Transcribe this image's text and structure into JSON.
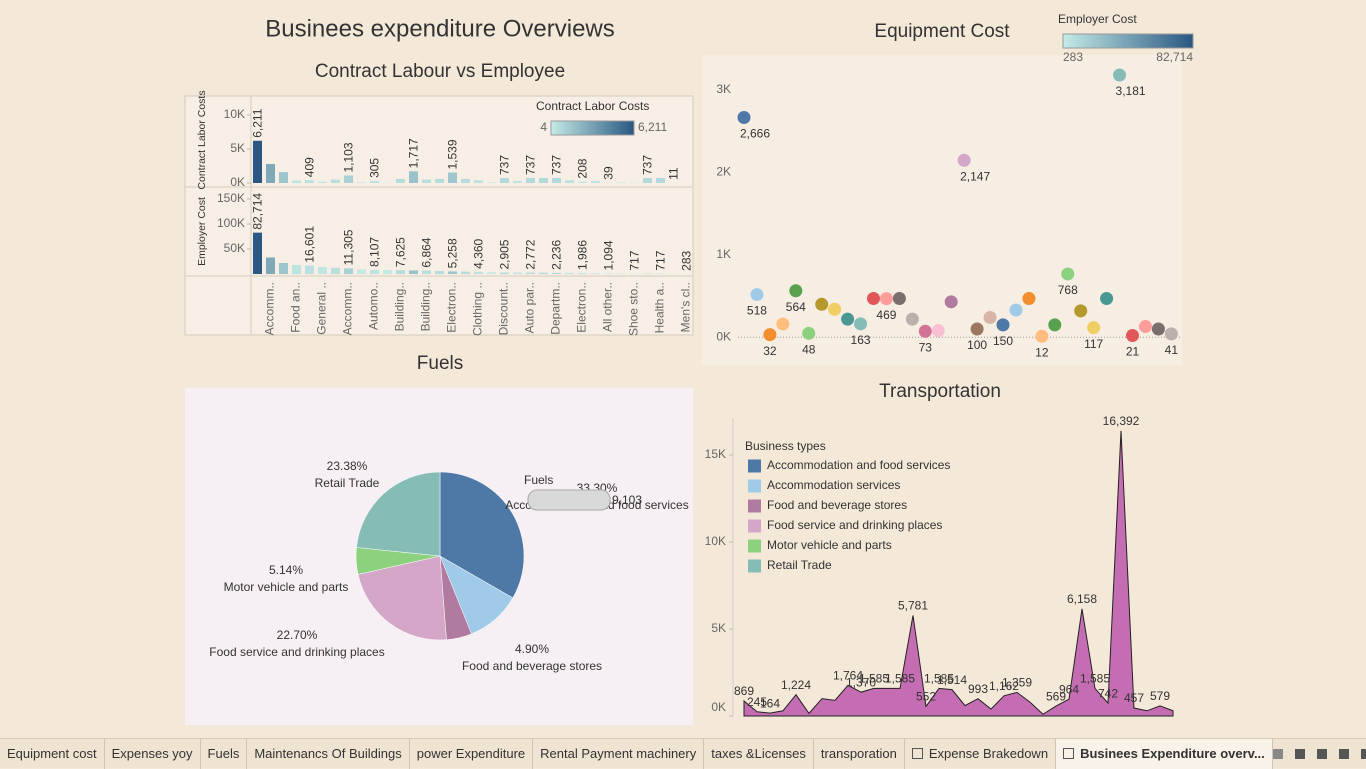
{
  "title": "Businees expenditure Overviews",
  "tabs": [
    "Equipment cost",
    "Expenses yoy",
    "Fuels",
    "Maintenancs Of Buildings",
    "power Expenditure",
    "Rental Payment machinery",
    "taxes &Licenses",
    "transporation",
    "Expense Brakedown",
    "Businees Expenditure overv..."
  ],
  "chart_data": [
    {
      "type": "bar",
      "title": "Contract Labour vs Employee",
      "categories": [
        null,
        "Accomm..",
        null,
        "Food an..",
        null,
        "General ..",
        null,
        "Accomm..",
        null,
        "Automo..",
        null,
        "Building..",
        null,
        "Building..",
        null,
        "Electron..",
        null,
        "Clothing ..",
        null,
        "Discount..",
        null,
        "Auto par..",
        null,
        "Departm..",
        null,
        "Electron..",
        null,
        "All other..",
        null,
        "Shoe sto..",
        null,
        "Health a..",
        null,
        "Men's cl.."
      ],
      "color_legend": {
        "title": "Contract Labor Costs",
        "range": [
          4,
          {
            "value": 6211,
            "label": "6,211"
          }
        ],
        "colors": [
          "#c4ebe6",
          "#2a5783"
        ]
      },
      "series": [
        {
          "name": "Contract Labor Costs",
          "values": [
            6211,
            2800,
            1600,
            350,
            409,
            200,
            500,
            1103,
            100,
            305,
            50,
            600,
            1717,
            500,
            600,
            1539,
            600,
            400,
            100,
            737,
            300,
            737,
            737,
            737,
            400,
            208,
            300,
            39,
            100,
            50,
            737,
            737,
            11,
            4
          ],
          "value_labels": [
            "6,211",
            null,
            null,
            null,
            "409",
            null,
            null,
            "1,103",
            null,
            "305",
            null,
            null,
            "1,717",
            null,
            null,
            "1,539",
            null,
            null,
            null,
            "737",
            null,
            "737",
            null,
            "737",
            null,
            "208",
            null,
            "39",
            null,
            null,
            "737",
            null,
            "11",
            null
          ],
          "ylim": [
            0,
            12650
          ],
          "yticks": [
            {
              "value": 0,
              "label": "0K"
            },
            {
              "value": 5000,
              "label": "5K"
            },
            {
              "value": 10000,
              "label": "10K"
            }
          ]
        },
        {
          "name": "Employer Cost",
          "values": [
            82714,
            33000,
            22000,
            18000,
            16601,
            14000,
            12500,
            11305,
            9000,
            8107,
            7800,
            7625,
            7200,
            6864,
            6000,
            5258,
            4800,
            4360,
            3500,
            2905,
            2800,
            2772,
            2500,
            2236,
            2100,
            1986,
            1500,
            1094,
            900,
            717,
            717,
            717,
            500,
            283
          ],
          "value_labels": [
            "82,714",
            null,
            null,
            null,
            "16,601",
            null,
            null,
            "11,305",
            null,
            "8,107",
            null,
            "7,625",
            null,
            "6,864",
            null,
            "5,258",
            null,
            "4,360",
            null,
            "2,905",
            null,
            "2,772",
            null,
            "2,236",
            null,
            "1,986",
            null,
            "1,094",
            null,
            "717",
            null,
            "717",
            null,
            "283"
          ],
          "ylim": [
            0,
            170000
          ],
          "yticks": [
            {
              "value": 50000,
              "label": "50K"
            },
            {
              "value": 100000,
              "label": "100K"
            },
            {
              "value": 150000,
              "label": "150K"
            }
          ]
        }
      ]
    },
    {
      "type": "scatter",
      "title": "Equipment  Cost",
      "color_legend": {
        "title": "Employer Cost",
        "range": [
          283,
          {
            "value": 82714,
            "label": "82,714"
          }
        ],
        "colors": [
          "#c4ebe6",
          "#2a5783"
        ]
      },
      "palette": [
        "#4e79a7",
        "#a0cbe8",
        "#f28e2b",
        "#ffbe7d",
        "#59a14f",
        "#8cd17d",
        "#b6992d",
        "#f1ce63",
        "#499894",
        "#86bcb6",
        "#e15759",
        "#ff9d9a",
        "#79706e",
        "#bab0ac",
        "#d37295",
        "#fabfd2",
        "#b07aa1",
        "#d4a6c8",
        "#9d7660",
        "#d7b5a6"
      ],
      "values": [
        2666,
        518,
        32,
        160,
        564,
        48,
        400,
        340,
        220,
        163,
        470,
        469,
        470,
        220,
        73,
        80,
        430,
        2147,
        100,
        240,
        150,
        330,
        470,
        12,
        150,
        768,
        320,
        117,
        470,
        3181,
        21,
        130,
        100,
        41
      ],
      "value_labels": [
        "2,666",
        "518",
        "32",
        null,
        "564",
        "48",
        null,
        null,
        null,
        "163",
        null,
        "469",
        null,
        null,
        "73",
        null,
        null,
        "2,147",
        "100",
        null,
        "150",
        null,
        null,
        "12",
        null,
        "768",
        null,
        "117",
        null,
        "3,181",
        "21",
        null,
        null,
        "41"
      ],
      "ylim": [
        -300,
        3400
      ],
      "yticks": [
        {
          "value": 0,
          "label": "0K"
        },
        {
          "value": 1000,
          "label": "1K"
        },
        {
          "value": 2000,
          "label": "2K"
        },
        {
          "value": 3000,
          "label": "3K"
        }
      ]
    },
    {
      "type": "pie",
      "title": "Fuels",
      "categories": [
        "Accommodation and food services",
        "Accommodation services",
        "Food and beverage stores",
        "Food service and drinking places",
        "Motor vehicle and parts",
        "Retail Trade"
      ],
      "values": [
        33.3,
        10.58,
        4.9,
        22.7,
        5.14,
        23.38
      ],
      "value_labels": [
        "33.30%",
        null,
        "4.90%",
        "22.70%",
        "5.14%",
        "23.38%"
      ],
      "colors": [
        "#4e79a7",
        "#a0cbe8",
        "#b07aa1",
        "#d4a6c8",
        "#8cd17d",
        "#86bcb6"
      ],
      "annotations": [
        "Fuels",
        "9,103"
      ]
    },
    {
      "type": "area",
      "title": "Transportation",
      "legend_title": "Business types",
      "legend": [
        {
          "name": "Accommodation and food services",
          "color": "#4e79a7"
        },
        {
          "name": "Accommodation services",
          "color": "#a0cbe8"
        },
        {
          "name": "Food and beverage stores",
          "color": "#b07aa1"
        },
        {
          "name": "Food service and drinking places",
          "color": "#d4a6c8"
        },
        {
          "name": "Motor vehicle and parts",
          "color": "#8cd17d"
        },
        {
          "name": "Retail Trade",
          "color": "#86bcb6"
        }
      ],
      "color": "#c46db3",
      "values": [
        869,
        245,
        164,
        300,
        1224,
        150,
        1000,
        900,
        1764,
        1370,
        1585,
        1585,
        1585,
        5781,
        552,
        1585,
        1514,
        600,
        993,
        400,
        1162,
        1359,
        800,
        100,
        569,
        964,
        6158,
        1585,
        742,
        16392,
        457,
        300,
        579,
        300
      ],
      "value_labels": [
        "869",
        "245",
        "164",
        null,
        "1,224",
        null,
        null,
        null,
        "1,764",
        "1,370",
        "1,585",
        null,
        "1,585",
        "5,781",
        "552",
        "1,585",
        "1,514",
        null,
        "993",
        null,
        "1,162",
        "1,359",
        null,
        null,
        "569",
        "964",
        "6,158",
        "1,585",
        "742",
        "16,392",
        "457",
        null,
        "579",
        null
      ],
      "ylim": [
        0,
        17130
      ],
      "yticks": [
        {
          "value": 0,
          "label": "0K"
        },
        {
          "value": 5000,
          "label": "5K"
        },
        {
          "value": 10000,
          "label": "10K"
        },
        {
          "value": 15000,
          "label": "15K"
        }
      ]
    }
  ]
}
